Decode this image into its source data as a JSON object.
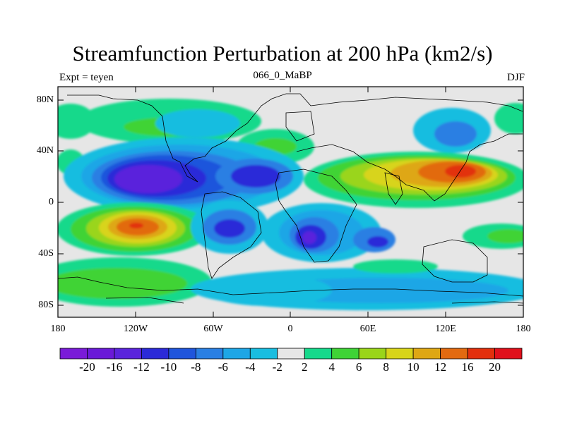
{
  "title": "Streamfunction Perturbation at 200 hPa (km2/s)",
  "subtitle_left": "Expt = teyen",
  "subtitle_center": "066_0_MaBP",
  "subtitle_right": "DJF",
  "lat_labels": [
    "80N",
    "40N",
    "0",
    "40S",
    "80S"
  ],
  "lon_labels": [
    "180",
    "120W",
    "60W",
    "0",
    "60E",
    "120E",
    "180"
  ],
  "colorbar": {
    "colors": [
      "#7a1bd8",
      "#6a1ad8",
      "#5a24dc",
      "#2b2ad8",
      "#1f55dc",
      "#2a7fe3",
      "#1ea6e6",
      "#19bde0",
      "#e6e6e6",
      "#16d98b",
      "#3fd336",
      "#9ad51a",
      "#d8d41a",
      "#dea714",
      "#e26a10",
      "#e2300d",
      "#e0101c"
    ],
    "labels": [
      "-20",
      "-16",
      "-12",
      "-10",
      "-8",
      "-6",
      "-4",
      "-2",
      "2",
      "4",
      "6",
      "8",
      "10",
      "12",
      "16",
      "20"
    ]
  }
}
